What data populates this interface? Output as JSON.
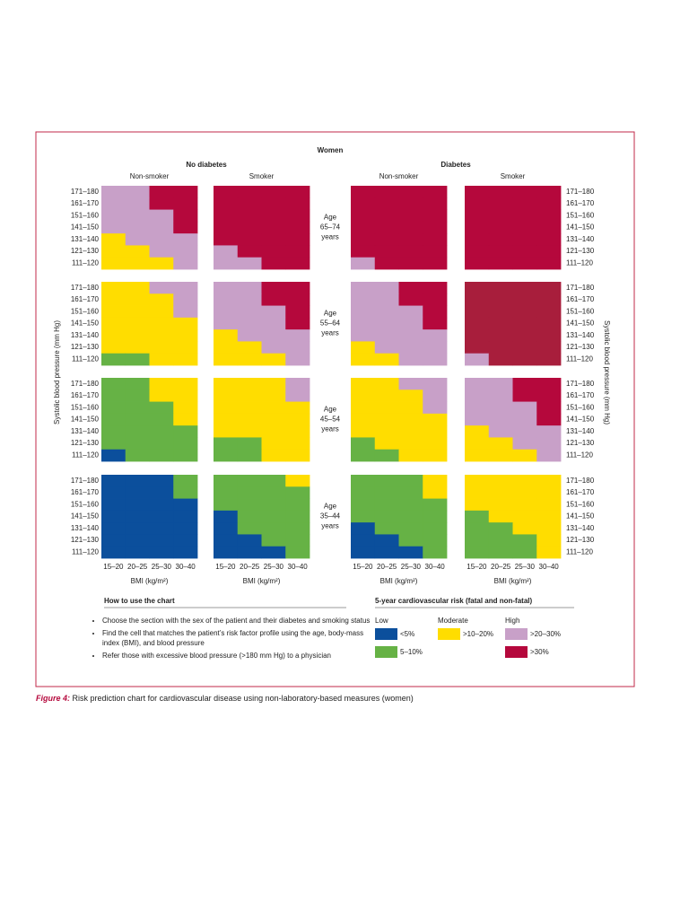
{
  "header": {
    "title": "Women",
    "groups": [
      "No diabetes",
      "Diabetes"
    ],
    "smoking": [
      "Non-smoker",
      "Smoker",
      "Non-smoker",
      "Smoker"
    ]
  },
  "sbp_labels": [
    "171–180",
    "161–170",
    "151–160",
    "141–150",
    "131–140",
    "121–130",
    "111–120"
  ],
  "sbp_title": "Systolic blood pressure (mm Hg)",
  "bmi_labels": [
    "15–20",
    "20–25",
    "25–30",
    "30–40"
  ],
  "bmi_title": "BMI (kg/m²)",
  "age_groups": [
    {
      "label": "Age",
      "range": "65–74",
      "unit": "years",
      "panels": [
        [
          [
            "#c8a0c8",
            "#c8a0c8",
            "#b5083c",
            "#b5083c"
          ],
          [
            "#c8a0c8",
            "#c8a0c8",
            "#b5083c",
            "#b5083c"
          ],
          [
            "#c8a0c8",
            "#c8a0c8",
            "#c8a0c8",
            "#b5083c"
          ],
          [
            "#c8a0c8",
            "#c8a0c8",
            "#c8a0c8",
            "#b5083c"
          ],
          [
            "#ffdd00",
            "#c8a0c8",
            "#c8a0c8",
            "#c8a0c8"
          ],
          [
            "#ffdd00",
            "#ffdd00",
            "#c8a0c8",
            "#c8a0c8"
          ],
          [
            "#ffdd00",
            "#ffdd00",
            "#ffdd00",
            "#c8a0c8"
          ]
        ],
        [
          [
            "#b5083c",
            "#b5083c",
            "#b5083c",
            "#b5083c"
          ],
          [
            "#b5083c",
            "#b5083c",
            "#b5083c",
            "#b5083c"
          ],
          [
            "#b5083c",
            "#b5083c",
            "#b5083c",
            "#b5083c"
          ],
          [
            "#b5083c",
            "#b5083c",
            "#b5083c",
            "#b5083c"
          ],
          [
            "#b5083c",
            "#b5083c",
            "#b5083c",
            "#b5083c"
          ],
          [
            "#c8a0c8",
            "#b5083c",
            "#b5083c",
            "#b5083c"
          ],
          [
            "#c8a0c8",
            "#c8a0c8",
            "#b5083c",
            "#b5083c"
          ]
        ],
        [
          [
            "#b5083c",
            "#b5083c",
            "#b5083c",
            "#b5083c"
          ],
          [
            "#b5083c",
            "#b5083c",
            "#b5083c",
            "#b5083c"
          ],
          [
            "#b5083c",
            "#b5083c",
            "#b5083c",
            "#b5083c"
          ],
          [
            "#b5083c",
            "#b5083c",
            "#b5083c",
            "#b5083c"
          ],
          [
            "#b5083c",
            "#b5083c",
            "#b5083c",
            "#b5083c"
          ],
          [
            "#b5083c",
            "#b5083c",
            "#b5083c",
            "#b5083c"
          ],
          [
            "#c8a0c8",
            "#b5083c",
            "#b5083c",
            "#b5083c"
          ]
        ],
        [
          [
            "#b5083c",
            "#b5083c",
            "#b5083c",
            "#b5083c"
          ],
          [
            "#b5083c",
            "#b5083c",
            "#b5083c",
            "#b5083c"
          ],
          [
            "#b5083c",
            "#b5083c",
            "#b5083c",
            "#b5083c"
          ],
          [
            "#b5083c",
            "#b5083c",
            "#b5083c",
            "#b5083c"
          ],
          [
            "#b5083c",
            "#b5083c",
            "#b5083c",
            "#b5083c"
          ],
          [
            "#b5083c",
            "#b5083c",
            "#b5083c",
            "#b5083c"
          ],
          [
            "#b5083c",
            "#b5083c",
            "#b5083c",
            "#b5083c"
          ]
        ]
      ]
    },
    {
      "label": "Age",
      "range": "55–64",
      "unit": "years",
      "panels": [
        [
          [
            "#ffdd00",
            "#ffdd00",
            "#c8a0c8",
            "#c8a0c8"
          ],
          [
            "#ffdd00",
            "#ffdd00",
            "#ffdd00",
            "#c8a0c8"
          ],
          [
            "#ffdd00",
            "#ffdd00",
            "#ffdd00",
            "#c8a0c8"
          ],
          [
            "#ffdd00",
            "#ffdd00",
            "#ffdd00",
            "#ffdd00"
          ],
          [
            "#ffdd00",
            "#ffdd00",
            "#ffdd00",
            "#ffdd00"
          ],
          [
            "#ffdd00",
            "#ffdd00",
            "#ffdd00",
            "#ffdd00"
          ],
          [
            "#66b245",
            "#66b245",
            "#ffdd00",
            "#ffdd00"
          ]
        ],
        [
          [
            "#c8a0c8",
            "#c8a0c8",
            "#b5083c",
            "#b5083c"
          ],
          [
            "#c8a0c8",
            "#c8a0c8",
            "#b5083c",
            "#b5083c"
          ],
          [
            "#c8a0c8",
            "#c8a0c8",
            "#c8a0c8",
            "#b5083c"
          ],
          [
            "#c8a0c8",
            "#c8a0c8",
            "#c8a0c8",
            "#b5083c"
          ],
          [
            "#ffdd00",
            "#c8a0c8",
            "#c8a0c8",
            "#c8a0c8"
          ],
          [
            "#ffdd00",
            "#ffdd00",
            "#c8a0c8",
            "#c8a0c8"
          ],
          [
            "#ffdd00",
            "#ffdd00",
            "#ffdd00",
            "#c8a0c8"
          ]
        ],
        [
          [
            "#c8a0c8",
            "#c8a0c8",
            "#b5083c",
            "#b5083c"
          ],
          [
            "#c8a0c8",
            "#c8a0c8",
            "#b5083c",
            "#b5083c"
          ],
          [
            "#c8a0c8",
            "#c8a0c8",
            "#c8a0c8",
            "#b5083c"
          ],
          [
            "#c8a0c8",
            "#c8a0c8",
            "#c8a0c8",
            "#b5083c"
          ],
          [
            "#c8a0c8",
            "#c8a0c8",
            "#c8a0c8",
            "#c8a0c8"
          ],
          [
            "#ffdd00",
            "#c8a0c8",
            "#c8a0c8",
            "#c8a0c8"
          ],
          [
            "#ffdd00",
            "#ffdd00",
            "#c8a0c8",
            "#c8a0c8"
          ]
        ],
        [
          [
            "#a81e3c",
            "#a81e3c",
            "#a81e3c",
            "#a81e3c"
          ],
          [
            "#a81e3c",
            "#a81e3c",
            "#a81e3c",
            "#a81e3c"
          ],
          [
            "#a81e3c",
            "#a81e3c",
            "#a81e3c",
            "#a81e3c"
          ],
          [
            "#a81e3c",
            "#a81e3c",
            "#a81e3c",
            "#a81e3c"
          ],
          [
            "#a81e3c",
            "#a81e3c",
            "#a81e3c",
            "#a81e3c"
          ],
          [
            "#a81e3c",
            "#a81e3c",
            "#a81e3c",
            "#a81e3c"
          ],
          [
            "#c8a0c8",
            "#a81e3c",
            "#a81e3c",
            "#a81e3c"
          ]
        ]
      ]
    },
    {
      "label": "Age",
      "range": "45–54",
      "unit": "years",
      "panels": [
        [
          [
            "#66b245",
            "#66b245",
            "#ffdd00",
            "#ffdd00"
          ],
          [
            "#66b245",
            "#66b245",
            "#ffdd00",
            "#ffdd00"
          ],
          [
            "#66b245",
            "#66b245",
            "#66b245",
            "#ffdd00"
          ],
          [
            "#66b245",
            "#66b245",
            "#66b245",
            "#ffdd00"
          ],
          [
            "#66b245",
            "#66b245",
            "#66b245",
            "#66b245"
          ],
          [
            "#66b245",
            "#66b245",
            "#66b245",
            "#66b245"
          ],
          [
            "#0b4f9c",
            "#66b245",
            "#66b245",
            "#66b245"
          ]
        ],
        [
          [
            "#ffdd00",
            "#ffdd00",
            "#ffdd00",
            "#c8a0c8"
          ],
          [
            "#ffdd00",
            "#ffdd00",
            "#ffdd00",
            "#c8a0c8"
          ],
          [
            "#ffdd00",
            "#ffdd00",
            "#ffdd00",
            "#ffdd00"
          ],
          [
            "#ffdd00",
            "#ffdd00",
            "#ffdd00",
            "#ffdd00"
          ],
          [
            "#ffdd00",
            "#ffdd00",
            "#ffdd00",
            "#ffdd00"
          ],
          [
            "#66b245",
            "#66b245",
            "#ffdd00",
            "#ffdd00"
          ],
          [
            "#66b245",
            "#66b245",
            "#ffdd00",
            "#ffdd00"
          ]
        ],
        [
          [
            "#ffdd00",
            "#ffdd00",
            "#c8a0c8",
            "#c8a0c8"
          ],
          [
            "#ffdd00",
            "#ffdd00",
            "#ffdd00",
            "#c8a0c8"
          ],
          [
            "#ffdd00",
            "#ffdd00",
            "#ffdd00",
            "#c8a0c8"
          ],
          [
            "#ffdd00",
            "#ffdd00",
            "#ffdd00",
            "#ffdd00"
          ],
          [
            "#ffdd00",
            "#ffdd00",
            "#ffdd00",
            "#ffdd00"
          ],
          [
            "#66b245",
            "#ffdd00",
            "#ffdd00",
            "#ffdd00"
          ],
          [
            "#66b245",
            "#66b245",
            "#ffdd00",
            "#ffdd00"
          ]
        ],
        [
          [
            "#c8a0c8",
            "#c8a0c8",
            "#b5083c",
            "#b5083c"
          ],
          [
            "#c8a0c8",
            "#c8a0c8",
            "#b5083c",
            "#b5083c"
          ],
          [
            "#c8a0c8",
            "#c8a0c8",
            "#c8a0c8",
            "#b5083c"
          ],
          [
            "#c8a0c8",
            "#c8a0c8",
            "#c8a0c8",
            "#b5083c"
          ],
          [
            "#ffdd00",
            "#c8a0c8",
            "#c8a0c8",
            "#c8a0c8"
          ],
          [
            "#ffdd00",
            "#ffdd00",
            "#c8a0c8",
            "#c8a0c8"
          ],
          [
            "#ffdd00",
            "#ffdd00",
            "#ffdd00",
            "#c8a0c8"
          ]
        ]
      ]
    },
    {
      "label": "Age",
      "range": "35–44",
      "unit": "years",
      "panels": [
        [
          [
            "#0b4f9c",
            "#0b4f9c",
            "#0b4f9c",
            "#66b245"
          ],
          [
            "#0b4f9c",
            "#0b4f9c",
            "#0b4f9c",
            "#66b245"
          ],
          [
            "#0b4f9c",
            "#0b4f9c",
            "#0b4f9c",
            "#0b4f9c"
          ],
          [
            "#0b4f9c",
            "#0b4f9c",
            "#0b4f9c",
            "#0b4f9c"
          ],
          [
            "#0b4f9c",
            "#0b4f9c",
            "#0b4f9c",
            "#0b4f9c"
          ],
          [
            "#0b4f9c",
            "#0b4f9c",
            "#0b4f9c",
            "#0b4f9c"
          ],
          [
            "#0b4f9c",
            "#0b4f9c",
            "#0b4f9c",
            "#0b4f9c"
          ]
        ],
        [
          [
            "#66b245",
            "#66b245",
            "#66b245",
            "#ffdd00"
          ],
          [
            "#66b245",
            "#66b245",
            "#66b245",
            "#66b245"
          ],
          [
            "#66b245",
            "#66b245",
            "#66b245",
            "#66b245"
          ],
          [
            "#0b4f9c",
            "#66b245",
            "#66b245",
            "#66b245"
          ],
          [
            "#0b4f9c",
            "#66b245",
            "#66b245",
            "#66b245"
          ],
          [
            "#0b4f9c",
            "#0b4f9c",
            "#66b245",
            "#66b245"
          ],
          [
            "#0b4f9c",
            "#0b4f9c",
            "#0b4f9c",
            "#66b245"
          ]
        ],
        [
          [
            "#66b245",
            "#66b245",
            "#66b245",
            "#ffdd00"
          ],
          [
            "#66b245",
            "#66b245",
            "#66b245",
            "#ffdd00"
          ],
          [
            "#66b245",
            "#66b245",
            "#66b245",
            "#66b245"
          ],
          [
            "#66b245",
            "#66b245",
            "#66b245",
            "#66b245"
          ],
          [
            "#0b4f9c",
            "#66b245",
            "#66b245",
            "#66b245"
          ],
          [
            "#0b4f9c",
            "#0b4f9c",
            "#66b245",
            "#66b245"
          ],
          [
            "#0b4f9c",
            "#0b4f9c",
            "#0b4f9c",
            "#66b245"
          ]
        ],
        [
          [
            "#ffdd00",
            "#ffdd00",
            "#ffdd00",
            "#ffdd00"
          ],
          [
            "#ffdd00",
            "#ffdd00",
            "#ffdd00",
            "#ffdd00"
          ],
          [
            "#ffdd00",
            "#ffdd00",
            "#ffdd00",
            "#ffdd00"
          ],
          [
            "#66b245",
            "#ffdd00",
            "#ffdd00",
            "#ffdd00"
          ],
          [
            "#66b245",
            "#66b245",
            "#ffdd00",
            "#ffdd00"
          ],
          [
            "#66b245",
            "#66b245",
            "#66b245",
            "#ffdd00"
          ],
          [
            "#66b245",
            "#66b245",
            "#66b245",
            "#ffdd00"
          ]
        ]
      ]
    }
  ],
  "how_to": {
    "title": "How to use the chart",
    "items": [
      "Choose the section with the sex of the patient and their diabetes and smoking status",
      "Find the cell that matches the patient’s risk factor profile using the age, body-mass index (BMI), and blood pressure",
      "Refer those with excessive blood pressure (>180 mm Hg) to a physician"
    ]
  },
  "legend": {
    "title": "5-year cardiovascular risk (fatal and non-fatal)",
    "levels": [
      "Low",
      "Moderate",
      "High"
    ],
    "items": [
      {
        "label": "<5%",
        "color": "#0b4f9c"
      },
      {
        "label": "5–10%",
        "color": "#66b245"
      },
      {
        "label": ">10–20%",
        "color": "#ffdd00"
      },
      {
        "label": ">20–30%",
        "color": "#c8a0c8"
      },
      {
        "label": ">30%",
        "color": "#b5083c"
      }
    ]
  },
  "caption": {
    "label": "Figure 4:",
    "text": "Risk prediction chart for cardiovascular disease using non-laboratory-based measures (women)"
  }
}
